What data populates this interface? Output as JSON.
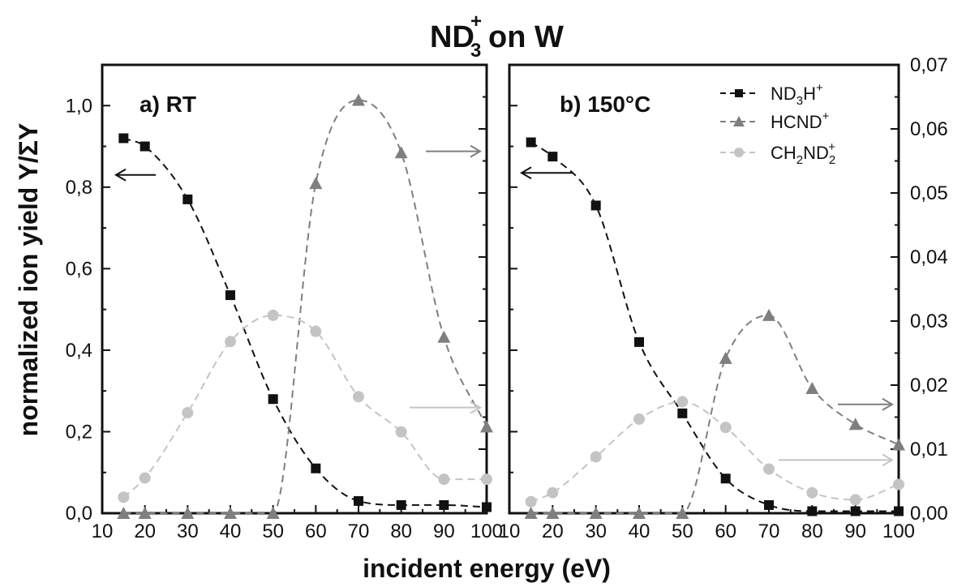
{
  "title": {
    "base": "ND",
    "superscript": "+",
    "subscript": "3",
    "rest": "on W"
  },
  "xlabel": "incident energy (eV)",
  "ylabel_left": "normalized ion yield Y/ΣY",
  "legend": [
    {
      "series": "ND3H+",
      "base": "ND",
      "sub1": "3",
      "mid": "H",
      "sub2": "",
      "sup": "+"
    },
    {
      "series": "HCND+",
      "base": "HCND",
      "sub1": "",
      "mid": "",
      "sub2": "",
      "sup": "+"
    },
    {
      "series": "CH2ND2+",
      "base": "CH",
      "sub1": "2",
      "mid": "ND",
      "sub2": "2",
      "sup": "+"
    }
  ],
  "colors": {
    "ND3H+": "#111111",
    "HCND+": "#7f7f7f",
    "CH2ND2+": "#c4c4c4",
    "frame": "#111111"
  },
  "chart_data": [
    {
      "type": "scatter",
      "panel_label": "a) RT",
      "x_ticks": [
        "10",
        "20",
        "30",
        "40",
        "50",
        "60",
        "70",
        "80",
        "90",
        "100"
      ],
      "xlim": [
        10,
        100
      ],
      "left_axis": {
        "ylim": [
          0,
          1.1
        ],
        "ticks": [
          "0,0",
          "0,2",
          "0,4",
          "0,6",
          "0,8",
          "1,0"
        ]
      },
      "right_axis": {
        "ylim": [
          0,
          0.07
        ],
        "ticks": [
          "0,00",
          "0,01",
          "0,02",
          "0,03",
          "0,04",
          "0,05",
          "0,06",
          "0,07"
        ]
      },
      "series": [
        {
          "name": "ND3H+",
          "axis": "left",
          "marker": "square",
          "x": [
            15,
            20,
            30,
            40,
            50,
            60,
            70,
            80,
            90,
            100
          ],
          "y": [
            0.92,
            0.9,
            0.77,
            0.535,
            0.28,
            0.11,
            0.03,
            0.02,
            0.02,
            0.015
          ]
        },
        {
          "name": "HCND+",
          "axis": "right",
          "marker": "triangle",
          "x": [
            15,
            20,
            30,
            40,
            50,
            60,
            70,
            80,
            90,
            100
          ],
          "y": [
            0.0,
            0.0,
            0.0,
            0.0,
            0.0,
            0.0515,
            0.0645,
            0.0563,
            0.0275,
            0.0135
          ]
        },
        {
          "name": "CH2ND2+",
          "axis": "right",
          "marker": "circle",
          "x": [
            15,
            20,
            30,
            40,
            50,
            60,
            70,
            80,
            90,
            100
          ],
          "y": [
            0.0025,
            0.0055,
            0.0157,
            0.0268,
            0.0309,
            0.0284,
            0.0182,
            0.0127,
            0.0053,
            0.0053
          ]
        }
      ]
    },
    {
      "type": "scatter",
      "panel_label": "b) 150°C",
      "x_ticks": [
        "10",
        "20",
        "30",
        "40",
        "50",
        "60",
        "70",
        "80",
        "90",
        "100"
      ],
      "xlim": [
        10,
        100
      ],
      "left_axis": {
        "ylim": [
          0,
          1.1
        ],
        "ticks": [
          "0,0",
          "0,2",
          "0,4",
          "0,6",
          "0,8",
          "1,0"
        ]
      },
      "right_axis": {
        "ylim": [
          0,
          0.07
        ],
        "ticks": [
          "0,00",
          "0,01",
          "0,02",
          "0,03",
          "0,04",
          "0,05",
          "0,06",
          "0,07"
        ]
      },
      "series": [
        {
          "name": "ND3H+",
          "axis": "left",
          "marker": "square",
          "x": [
            15,
            20,
            30,
            40,
            50,
            60,
            70,
            80,
            90,
            100
          ],
          "y": [
            0.91,
            0.875,
            0.755,
            0.42,
            0.245,
            0.085,
            0.02,
            0.005,
            0.005,
            0.005
          ]
        },
        {
          "name": "HCND+",
          "axis": "right",
          "marker": "triangle",
          "x": [
            15,
            20,
            30,
            40,
            50,
            60,
            70,
            80,
            90,
            100
          ],
          "y": [
            0.0,
            0.0,
            0.0,
            0.0,
            0.0,
            0.0242,
            0.0309,
            0.0195,
            0.0139,
            0.0107
          ]
        },
        {
          "name": "CH2ND2+",
          "axis": "right",
          "marker": "circle",
          "x": [
            15,
            20,
            30,
            40,
            50,
            60,
            70,
            80,
            90,
            100
          ],
          "y": [
            0.0018,
            0.0032,
            0.0088,
            0.0147,
            0.0174,
            0.0134,
            0.0069,
            0.0032,
            0.0021,
            0.0045
          ]
        }
      ]
    }
  ]
}
